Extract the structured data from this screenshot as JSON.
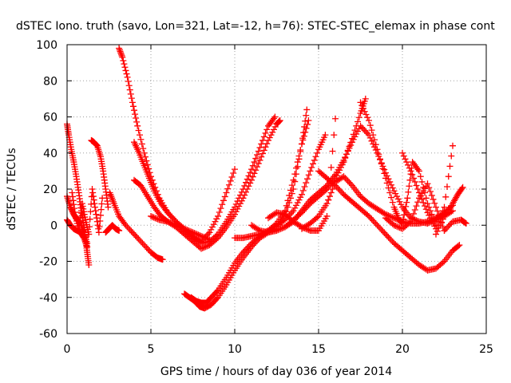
{
  "chart_data": {
    "type": "scatter",
    "title": "dSTEC Iono. truth (savo, Lon=321, Lat=-12, h=76): STEC-STEC_elemax in phase cont",
    "xlabel": "GPS time / hours of day 036 of year 2014",
    "ylabel": "dSTEC  / TECUs",
    "xlim": [
      0,
      25
    ],
    "ylim": [
      -60,
      100
    ],
    "xticks": [
      0,
      5,
      10,
      15,
      20,
      25
    ],
    "yticks": [
      -60,
      -40,
      -20,
      0,
      20,
      40,
      60,
      80,
      100
    ],
    "grid": true,
    "grid_style": "dotted",
    "marker": "+",
    "color": "#ff0000",
    "series": [
      {
        "x": [
          0.0,
          0.1,
          0.25,
          0.4,
          0.55,
          0.7,
          0.85,
          1.0,
          1.1,
          1.2,
          1.3
        ],
        "y": [
          56,
          50,
          42,
          35,
          27,
          18,
          8,
          0,
          -8,
          -15,
          -22
        ]
      },
      {
        "x": [
          0.0,
          0.2,
          0.4,
          0.6,
          0.8,
          1.0,
          1.2
        ],
        "y": [
          16,
          10,
          6,
          3,
          1,
          -4,
          -10
        ]
      },
      {
        "x": [
          0.0,
          0.2,
          0.4,
          0.6,
          0.8,
          1.0,
          1.2
        ],
        "y": [
          3,
          0,
          -2,
          -3,
          -4,
          -7,
          -12
        ]
      },
      {
        "x": [
          0.3,
          0.5,
          0.7,
          0.9,
          1.1,
          1.3,
          1.5,
          1.7,
          1.9,
          2.1
        ],
        "y": [
          18,
          5,
          -3,
          12,
          3,
          -5,
          20,
          8,
          -4,
          15
        ]
      },
      {
        "x": [
          1.45,
          1.6,
          1.8,
          2.0,
          2.15,
          2.3,
          2.45
        ],
        "y": [
          47,
          46,
          44,
          38,
          30,
          20,
          10
        ]
      },
      {
        "x": [
          2.3,
          2.5,
          2.7,
          2.9,
          3.1
        ],
        "y": [
          -4,
          -2,
          0,
          -2,
          -3
        ]
      },
      {
        "x": [
          2.55,
          2.8,
          3.1,
          3.5,
          4.0,
          4.5,
          5.0,
          5.4,
          5.7
        ],
        "y": [
          18,
          12,
          5,
          0,
          -5,
          -10,
          -15,
          -18,
          -19
        ]
      },
      {
        "x": [
          3.1,
          3.3,
          3.6,
          3.9,
          4.2,
          4.6,
          5.0,
          5.5,
          6.0,
          6.5,
          7.0,
          7.5,
          8.0,
          8.5,
          9.0,
          9.5,
          10.0
        ],
        "y": [
          98,
          93,
          82,
          68,
          55,
          40,
          27,
          15,
          7,
          2,
          -2,
          -6,
          -9,
          -4,
          5,
          18,
          31
        ]
      },
      {
        "x": [
          4.0,
          4.3,
          4.6,
          4.9,
          5.2,
          5.6,
          6.0,
          6.5,
          7.0,
          7.5,
          8.0,
          8.5,
          9.0,
          9.5,
          10.0,
          10.5,
          11.0,
          11.5,
          12.0,
          12.4
        ],
        "y": [
          46,
          40,
          33,
          26,
          19,
          12,
          7,
          2,
          -3,
          -7,
          -10,
          -9,
          -5,
          2,
          10,
          20,
          31,
          43,
          55,
          60
        ]
      },
      {
        "x": [
          4.0,
          4.4,
          4.8,
          5.2,
          5.6,
          6.0,
          6.5,
          7.0,
          7.5,
          8.0,
          8.5,
          9.0,
          9.5,
          10.0,
          10.5,
          11.0,
          11.5,
          12.0,
          12.5,
          12.7
        ],
        "y": [
          25,
          22,
          16,
          10,
          5,
          2,
          -1,
          -5,
          -9,
          -13,
          -11,
          -7,
          -1,
          6,
          15,
          25,
          36,
          47,
          56,
          58
        ]
      },
      {
        "x": [
          5.0,
          5.5,
          6.0,
          6.5,
          7.0,
          7.5,
          8.0,
          8.5
        ],
        "y": [
          5,
          3,
          2,
          0,
          -2,
          -4,
          -6,
          -8
        ]
      },
      {
        "x": [
          7.0,
          7.3,
          7.6,
          7.9,
          8.2,
          8.6,
          9.0,
          9.5,
          10.0,
          10.5,
          11.0,
          11.5,
          12.0,
          12.5,
          13.0,
          13.5,
          14.0,
          14.3
        ],
        "y": [
          -38,
          -40,
          -42,
          -45,
          -46,
          -44,
          -40,
          -33,
          -25,
          -18,
          -12,
          -7,
          -4,
          -2,
          5,
          20,
          45,
          64
        ]
      },
      {
        "x": [
          7.4,
          7.7,
          8.0,
          8.3,
          8.6,
          9.0,
          9.5,
          10.0,
          10.5,
          11.0,
          11.5,
          12.0,
          12.5,
          13.0,
          13.5,
          14.0,
          14.5,
          15.0,
          15.4
        ],
        "y": [
          -40,
          -42,
          -43,
          -43,
          -40,
          -36,
          -29,
          -21,
          -15,
          -10,
          -6,
          -3,
          0,
          3,
          8,
          17,
          30,
          42,
          50
        ]
      },
      {
        "x": [
          10.0,
          10.5,
          11.0,
          11.5,
          12.0,
          12.5,
          13.0,
          13.5,
          14.0,
          14.4
        ],
        "y": [
          -7,
          -7,
          -6,
          -5,
          -3,
          1,
          8,
          25,
          45,
          58
        ]
      },
      {
        "x": [
          11.0,
          11.5,
          12.0,
          12.5,
          13.0,
          13.5,
          14.0,
          14.5,
          15.0,
          15.5,
          16.0,
          16.5,
          17.0,
          17.5,
          17.8
        ],
        "y": [
          0,
          -3,
          -4,
          -3,
          -1,
          3,
          7,
          12,
          16,
          20,
          26,
          35,
          48,
          62,
          70
        ]
      },
      {
        "x": [
          12.0,
          12.5,
          13.0,
          13.5,
          14.0,
          14.5,
          15.0,
          15.5,
          16.0
        ],
        "y": [
          4,
          7,
          6,
          2,
          -1,
          -3,
          -3,
          5,
          59
        ]
      },
      {
        "x": [
          13.0,
          13.5,
          14.0,
          14.5,
          15.0,
          15.5,
          16.0,
          16.5,
          17.0,
          17.5,
          18.0,
          18.5,
          19.0,
          19.5,
          20.0,
          20.5,
          21.0,
          21.5,
          22.0,
          22.5,
          23.0
        ],
        "y": [
          -1,
          2,
          8,
          14,
          18,
          22,
          28,
          36,
          46,
          55,
          50,
          40,
          29,
          19,
          10,
          4,
          2,
          1,
          3,
          5,
          8
        ]
      },
      {
        "x": [
          14.0,
          14.5,
          15.0,
          15.5,
          16.0,
          16.5,
          17.0,
          17.5,
          18.0,
          18.5,
          19.0,
          19.5,
          20.0,
          20.5,
          21.0,
          21.5,
          22.0,
          22.5,
          23.0
        ],
        "y": [
          -2,
          1,
          5,
          12,
          24,
          27,
          22,
          16,
          12,
          9,
          6,
          4,
          2,
          1,
          1,
          2,
          4,
          7,
          11
        ]
      },
      {
        "x": [
          15.0,
          15.5,
          16.0,
          16.5,
          17.0,
          17.5,
          18.0,
          18.5,
          19.0,
          19.5,
          20.0,
          20.5,
          21.0,
          21.5,
          22.0,
          22.5,
          23.0,
          23.4
        ],
        "y": [
          30,
          26,
          22,
          17,
          13,
          9,
          5,
          0,
          -5,
          -10,
          -14,
          -18,
          -22,
          -25,
          -24,
          -20,
          -14,
          -11
        ]
      },
      {
        "x": [
          17.5,
          18.0,
          18.5,
          19.0,
          19.5,
          19.8,
          20.0,
          20.3,
          20.6,
          21.0,
          21.5,
          22.0
        ],
        "y": [
          68,
          58,
          42,
          26,
          10,
          3,
          1,
          15,
          35,
          30,
          12,
          0
        ]
      },
      {
        "x": [
          19.0,
          19.5,
          20.0,
          20.5,
          21.0,
          21.5,
          22.0,
          22.5
        ],
        "y": [
          4,
          0,
          -2,
          2,
          15,
          23,
          10,
          -3
        ]
      },
      {
        "x": [
          20.0,
          20.5,
          21.0,
          21.5,
          22.0,
          22.5,
          23.0
        ],
        "y": [
          40,
          30,
          18,
          7,
          -2,
          10,
          44
        ]
      },
      {
        "x": [
          22.0,
          22.5,
          23.0,
          23.3,
          23.6
        ],
        "y": [
          -5,
          5,
          12,
          17,
          21
        ]
      },
      {
        "x": [
          22.5,
          23.0,
          23.5,
          23.8
        ],
        "y": [
          -3,
          2,
          3,
          1
        ]
      }
    ]
  }
}
